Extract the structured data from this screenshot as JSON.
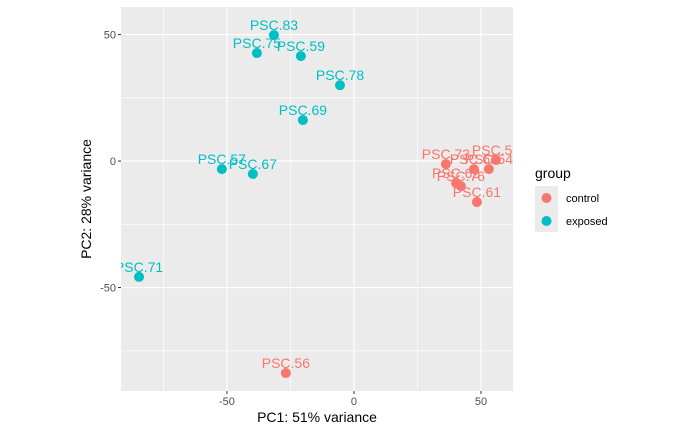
{
  "chart_data": {
    "type": "scatter",
    "title": "",
    "xlabel": "PC1: 51% variance",
    "ylabel": "PC2: 28% variance",
    "xlim": [
      -91.7,
      62.6
    ],
    "ylim": [
      -90.9,
      60.9
    ],
    "xticks": [
      -50,
      0,
      50
    ],
    "yticks": [
      -50,
      0,
      50
    ],
    "xtick_labels": [
      "-50",
      "0",
      "50"
    ],
    "ytick_labels": [
      "-50",
      "0",
      "50"
    ],
    "grid": true,
    "legend": {
      "title": "group",
      "position": "right",
      "entries": [
        {
          "name": "control",
          "color": "#F8766D"
        },
        {
          "name": "exposed",
          "color": "#00BFC4"
        }
      ]
    },
    "series": [
      {
        "name": "control",
        "color": "#F8766D",
        "points": [
          {
            "label": "PSC.56",
            "x": -26.8,
            "y": -83.8
          },
          {
            "label": "PSC.73",
            "x": 36.2,
            "y": -1.2
          },
          {
            "label": "PSC.63",
            "x": 47.2,
            "y": -3.2
          },
          {
            "label": "PSC.54",
            "x": 53.1,
            "y": -3.2
          },
          {
            "label": "PSC.58",
            "x": 55.9,
            "y": 0.4
          },
          {
            "label": "PSC.62",
            "x": 40.2,
            "y": -8.7
          },
          {
            "label": "PSC.76",
            "x": 42.1,
            "y": -9.9
          },
          {
            "label": "PSC.61",
            "x": 48.4,
            "y": -16.2
          }
        ]
      },
      {
        "name": "exposed",
        "color": "#00BFC4",
        "points": [
          {
            "label": "PSC.83",
            "x": -31.5,
            "y": 49.8
          },
          {
            "label": "PSC.75",
            "x": -38.2,
            "y": 42.7
          },
          {
            "label": "PSC.59",
            "x": -20.9,
            "y": 41.5
          },
          {
            "label": "PSC.78",
            "x": -5.5,
            "y": 30.0
          },
          {
            "label": "PSC.69",
            "x": -20.1,
            "y": 16.2
          },
          {
            "label": "PSC.57",
            "x": -52.0,
            "y": -3.2
          },
          {
            "label": "PSC.67",
            "x": -39.8,
            "y": -5.1
          },
          {
            "label": "PSC.71",
            "x": -84.6,
            "y": -45.8
          }
        ]
      }
    ]
  }
}
